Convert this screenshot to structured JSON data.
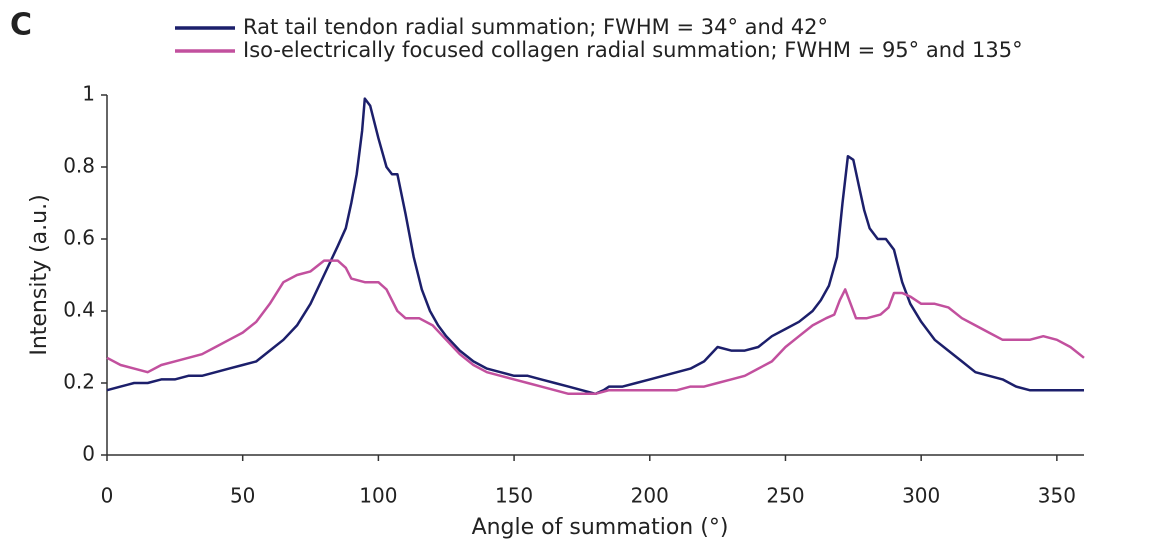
{
  "chart_data": {
    "type": "line",
    "panel_label": "C",
    "xlabel": "Angle of summation (°)",
    "ylabel": "Intensity (a.u.)",
    "xlim": [
      0,
      360
    ],
    "ylim": [
      0,
      1
    ],
    "xticks": [
      0,
      50,
      100,
      150,
      200,
      250,
      300,
      350
    ],
    "yticks": [
      0,
      0.2,
      0.4,
      0.6,
      0.8,
      1
    ],
    "series": [
      {
        "name": "Rat tail tendon radial summation; FWHM = 34° and 42°",
        "color": "#1c1f6b",
        "x": [
          0,
          5,
          10,
          15,
          20,
          25,
          30,
          35,
          40,
          45,
          50,
          55,
          60,
          65,
          70,
          75,
          80,
          85,
          88,
          90,
          92,
          94,
          95,
          97,
          100,
          103,
          105,
          107,
          110,
          113,
          116,
          119,
          122,
          125,
          130,
          135,
          140,
          145,
          150,
          155,
          160,
          165,
          170,
          175,
          180,
          183,
          185,
          190,
          195,
          200,
          205,
          210,
          215,
          220,
          225,
          230,
          235,
          240,
          245,
          250,
          255,
          260,
          263,
          266,
          269,
          271,
          273,
          275,
          277,
          279,
          281,
          284,
          287,
          290,
          293,
          296,
          300,
          305,
          310,
          315,
          320,
          325,
          330,
          335,
          340,
          345,
          350,
          355,
          360
        ],
        "values": [
          0.18,
          0.19,
          0.2,
          0.2,
          0.21,
          0.21,
          0.22,
          0.22,
          0.23,
          0.24,
          0.25,
          0.26,
          0.29,
          0.32,
          0.36,
          0.42,
          0.5,
          0.58,
          0.63,
          0.7,
          0.78,
          0.9,
          0.99,
          0.97,
          0.88,
          0.8,
          0.78,
          0.78,
          0.67,
          0.55,
          0.46,
          0.4,
          0.36,
          0.33,
          0.29,
          0.26,
          0.24,
          0.23,
          0.22,
          0.22,
          0.21,
          0.2,
          0.19,
          0.18,
          0.17,
          0.18,
          0.19,
          0.19,
          0.2,
          0.21,
          0.22,
          0.23,
          0.24,
          0.26,
          0.3,
          0.29,
          0.29,
          0.3,
          0.33,
          0.35,
          0.37,
          0.4,
          0.43,
          0.47,
          0.55,
          0.7,
          0.83,
          0.82,
          0.75,
          0.68,
          0.63,
          0.6,
          0.6,
          0.57,
          0.48,
          0.42,
          0.37,
          0.32,
          0.29,
          0.26,
          0.23,
          0.22,
          0.21,
          0.19,
          0.18,
          0.18,
          0.18,
          0.18,
          0.18
        ]
      },
      {
        "name": "Iso-electrically focused collagen radial summation; FWHM = 95° and 135°",
        "color": "#c2509e",
        "x": [
          0,
          5,
          10,
          15,
          20,
          25,
          30,
          35,
          40,
          45,
          50,
          55,
          60,
          65,
          70,
          75,
          80,
          85,
          88,
          90,
          95,
          100,
          103,
          107,
          110,
          115,
          120,
          125,
          130,
          135,
          140,
          145,
          150,
          155,
          160,
          165,
          170,
          175,
          180,
          185,
          190,
          195,
          200,
          205,
          210,
          215,
          220,
          225,
          230,
          235,
          240,
          245,
          250,
          255,
          260,
          265,
          268,
          270,
          272,
          274,
          276,
          280,
          285,
          288,
          290,
          293,
          296,
          300,
          305,
          310,
          315,
          320,
          325,
          330,
          335,
          340,
          345,
          350,
          355,
          360
        ],
        "values": [
          0.27,
          0.25,
          0.24,
          0.23,
          0.25,
          0.26,
          0.27,
          0.28,
          0.3,
          0.32,
          0.34,
          0.37,
          0.42,
          0.48,
          0.5,
          0.51,
          0.54,
          0.54,
          0.52,
          0.49,
          0.48,
          0.48,
          0.46,
          0.4,
          0.38,
          0.38,
          0.36,
          0.32,
          0.28,
          0.25,
          0.23,
          0.22,
          0.21,
          0.2,
          0.19,
          0.18,
          0.17,
          0.17,
          0.17,
          0.18,
          0.18,
          0.18,
          0.18,
          0.18,
          0.18,
          0.19,
          0.19,
          0.2,
          0.21,
          0.22,
          0.24,
          0.26,
          0.3,
          0.33,
          0.36,
          0.38,
          0.39,
          0.43,
          0.46,
          0.42,
          0.38,
          0.38,
          0.39,
          0.41,
          0.45,
          0.45,
          0.44,
          0.42,
          0.42,
          0.41,
          0.38,
          0.36,
          0.34,
          0.32,
          0.32,
          0.32,
          0.33,
          0.32,
          0.3,
          0.27
        ]
      }
    ]
  }
}
